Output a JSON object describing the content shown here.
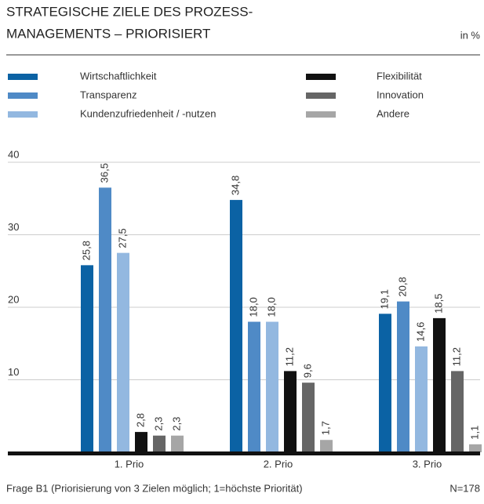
{
  "chart_data": {
    "type": "bar",
    "title_lines": [
      "STRATEGISCHE ZIELE DES PROZESS-",
      "MANAGEMENTS – PRIORISIERT"
    ],
    "unit_label": "in %",
    "categories": [
      "1. Prio",
      "2. Prio",
      "3. Prio"
    ],
    "series": [
      {
        "name": "Wirtschaftlichkeit",
        "color": "#0b62a4",
        "values": [
          25.8,
          34.8,
          19.1
        ],
        "value_labels": [
          "25,8",
          "34,8",
          "19,1"
        ]
      },
      {
        "name": "Transparenz",
        "color": "#4f8ac6",
        "values": [
          36.5,
          18.0,
          20.8
        ],
        "value_labels": [
          "36,5",
          "18,0",
          "20,8"
        ]
      },
      {
        "name": "Kundenzufriedenheit / -nutzen",
        "color": "#93b8e0",
        "values": [
          27.5,
          18.0,
          14.6
        ],
        "value_labels": [
          "27,5",
          "18,0",
          "14,6"
        ]
      },
      {
        "name": "Flexibilität",
        "color": "#111111",
        "values": [
          2.8,
          11.2,
          18.5
        ],
        "value_labels": [
          "2,8",
          "11,2",
          "18,5"
        ]
      },
      {
        "name": "Innovation",
        "color": "#666666",
        "values": [
          2.3,
          9.6,
          11.2
        ],
        "value_labels": [
          "2,3",
          "9,6",
          "11,2"
        ]
      },
      {
        "name": "Andere",
        "color": "#a6a6a6",
        "values": [
          2.3,
          1.7,
          1.1
        ],
        "value_labels": [
          "2,3",
          "1,7",
          "1,1"
        ]
      }
    ],
    "ylim": [
      0,
      40
    ],
    "yticks": [
      10,
      20,
      30,
      40
    ],
    "grid": true,
    "footnote": "Frage B1 (Priorisierung von 3 Zielen möglich; 1=höchste Priorität)",
    "sample_size": "N=178"
  }
}
